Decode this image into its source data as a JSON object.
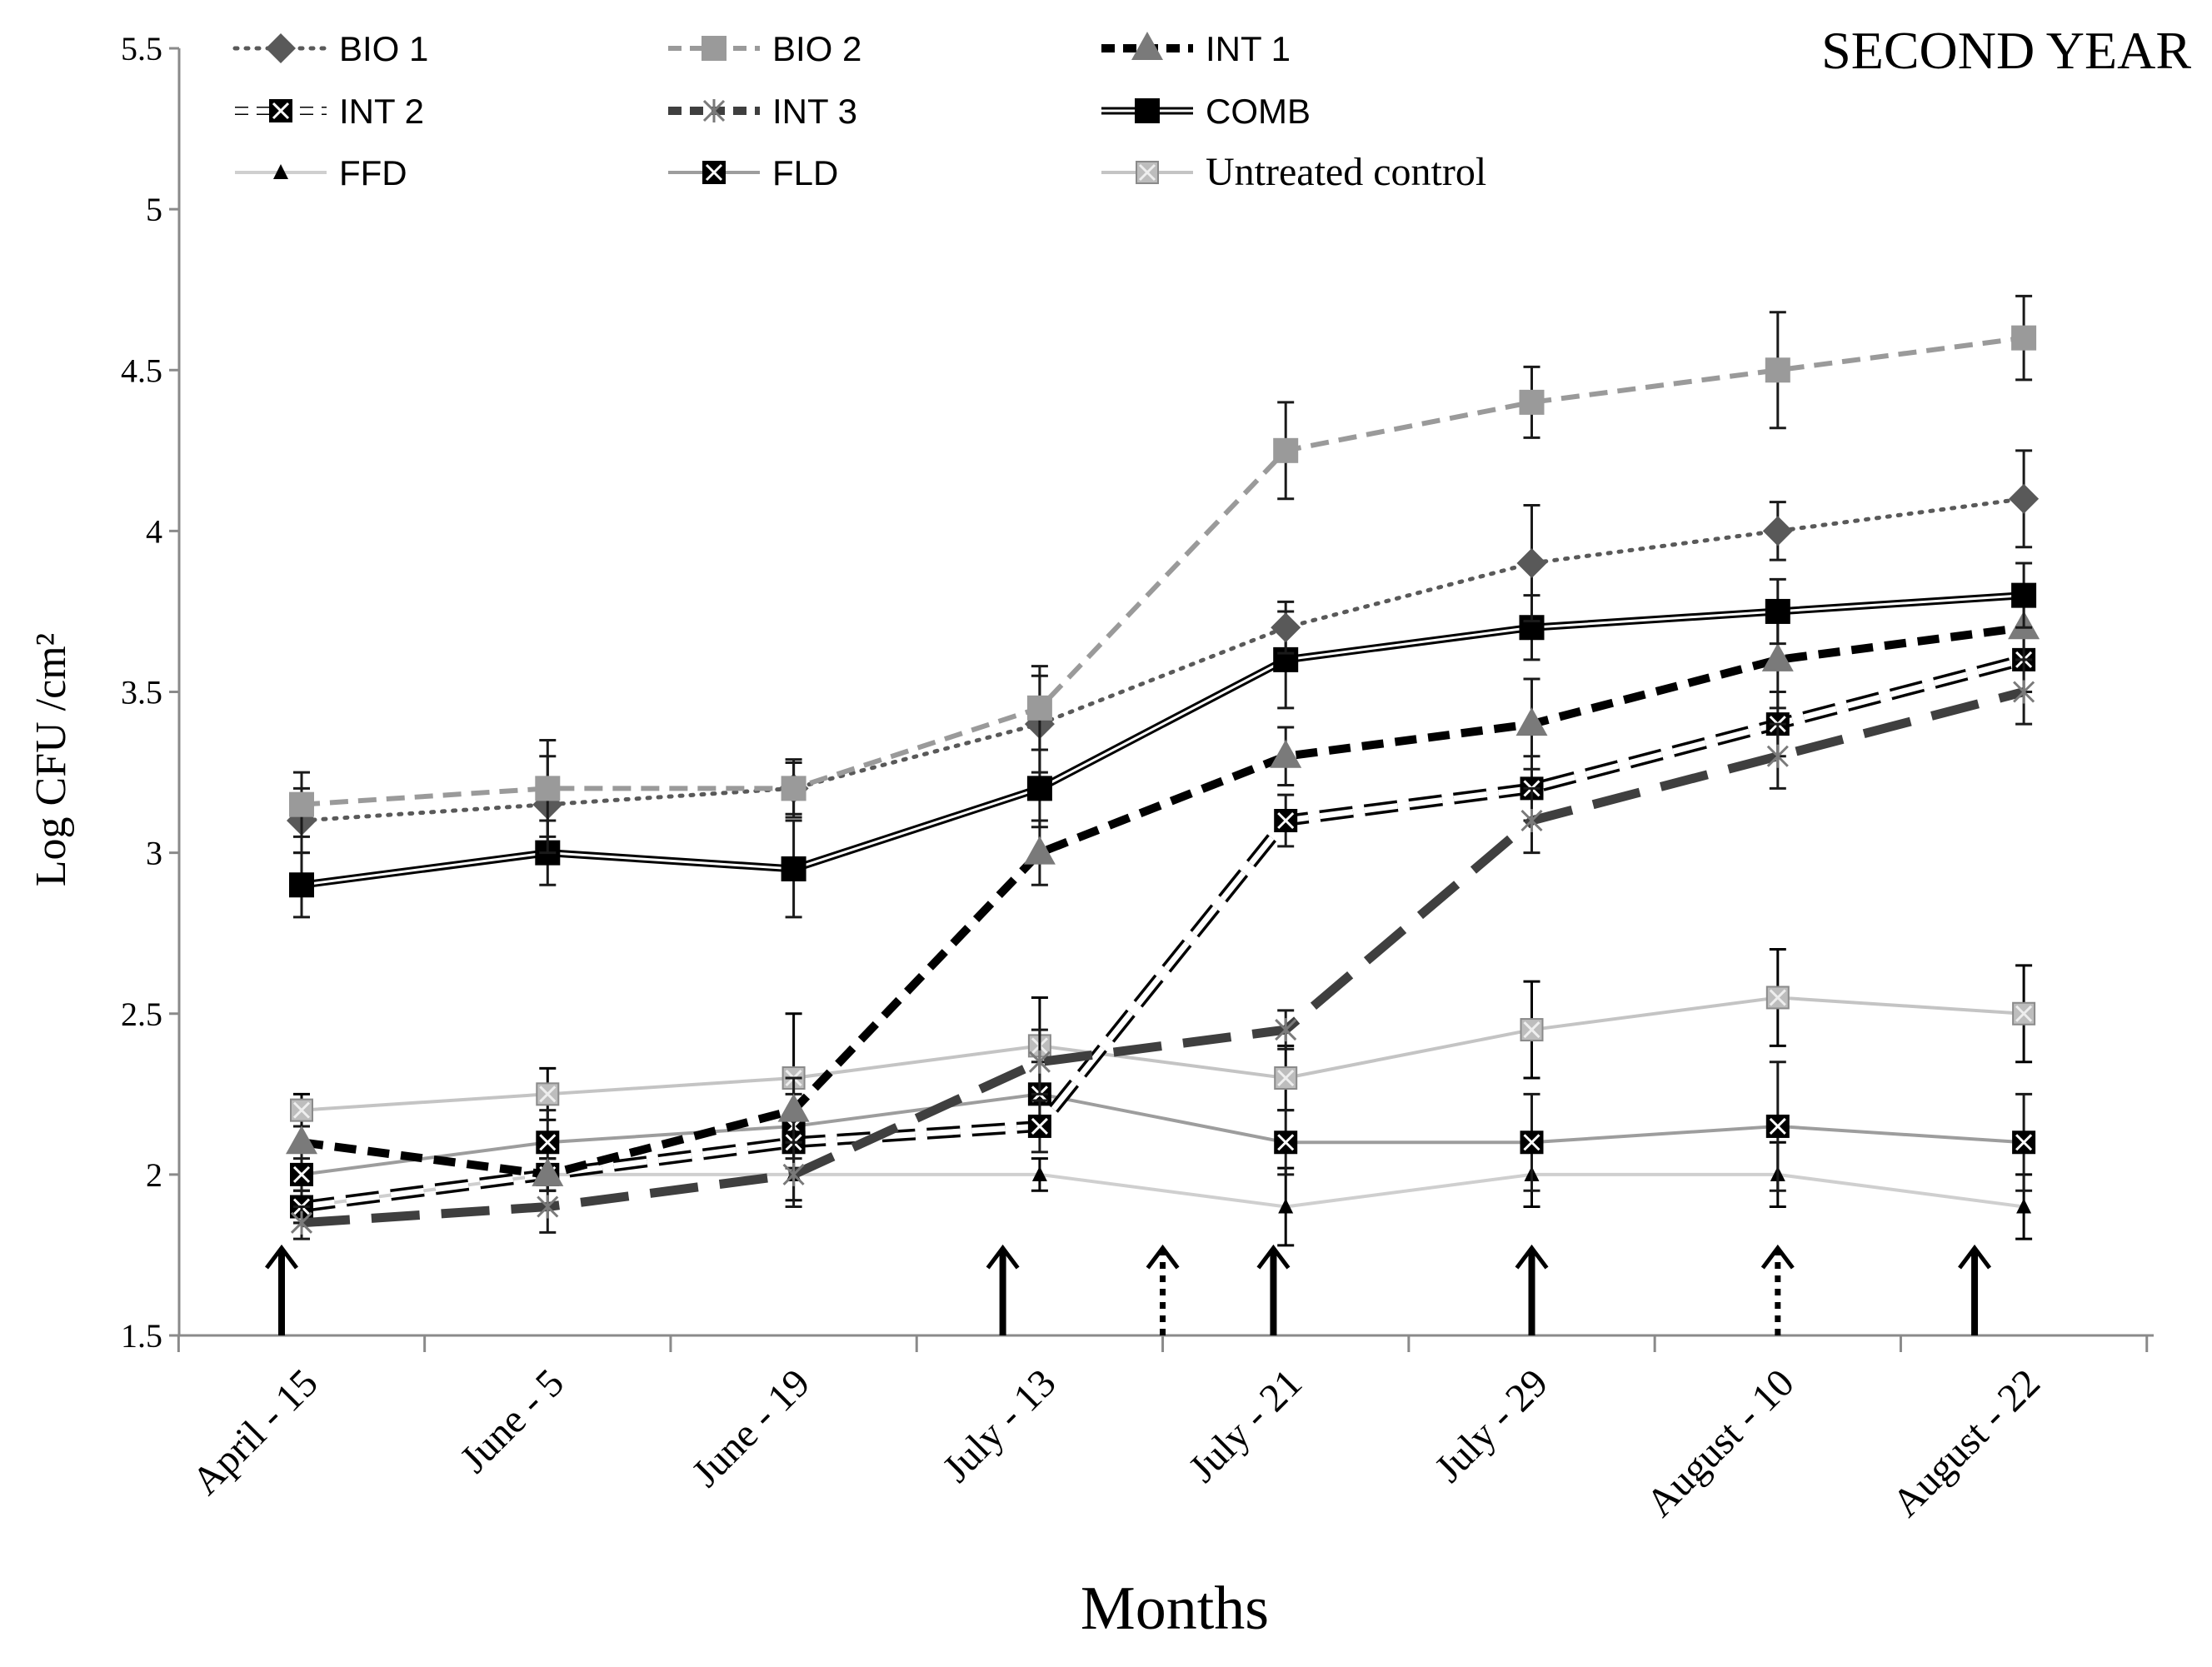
{
  "chart_data": {
    "type": "line",
    "title": "SECOND YEAR",
    "xlabel": "Months",
    "ylabel": "Log CFU /cm²",
    "ylim": [
      1.5,
      5.5
    ],
    "yticks": [
      "1.5",
      "2",
      "2.5",
      "3",
      "3.5",
      "4",
      "4.5",
      "5",
      "5.5"
    ],
    "grid": false,
    "legend_position": "top",
    "categories": [
      "April - 15",
      "June - 5",
      "June - 19",
      "July - 13",
      "July - 21",
      "July - 29",
      "August - 10",
      "August - 22"
    ],
    "series": [
      {
        "name": "BIO 1",
        "marker": "diamond",
        "color": "#595959",
        "line": "dotted",
        "values": [
          3.1,
          3.15,
          3.2,
          3.4,
          3.7,
          3.9,
          4.0,
          4.1
        ],
        "errors": [
          0.1,
          0.15,
          0.09,
          0.15,
          0.08,
          0.18,
          0.09,
          0.15
        ]
      },
      {
        "name": "BIO 2",
        "marker": "square",
        "color": "#9a9a9a",
        "line": "dashed",
        "values": [
          3.15,
          3.2,
          3.2,
          3.45,
          4.25,
          4.4,
          4.5,
          4.6
        ],
        "errors": [
          0.1,
          0.15,
          0.08,
          0.13,
          0.15,
          0.11,
          0.18,
          0.13
        ]
      },
      {
        "name": "INT 1",
        "marker": "triangle",
        "color": "#000000",
        "line": "thick-dashed",
        "values": [
          2.1,
          2.0,
          2.2,
          3.0,
          3.3,
          3.4,
          3.6,
          3.7
        ],
        "errors": [
          0.05,
          0.05,
          0.1,
          0.1,
          0.09,
          0.14,
          0.15,
          0.1
        ]
      },
      {
        "name": "INT 2",
        "marker": "xsquare",
        "color": "#000000",
        "line": "hollow-dashed",
        "values": [
          1.9,
          2.0,
          2.1,
          2.15,
          3.1,
          3.2,
          3.4,
          3.6
        ],
        "errors": [
          0.05,
          0.05,
          0.08,
          0.08,
          0.08,
          0.1,
          0.1,
          0.1
        ]
      },
      {
        "name": "INT 3",
        "marker": "star",
        "color": "#3f3f3f",
        "line": "long-dashed",
        "values": [
          1.85,
          1.9,
          2.0,
          2.35,
          2.45,
          3.1,
          3.3,
          3.5
        ],
        "errors": [
          0.05,
          0.08,
          0.1,
          0.1,
          0.06,
          0.1,
          0.1,
          0.1
        ]
      },
      {
        "name": "COMB",
        "marker": "square",
        "color": "#000000",
        "line": "double",
        "values": [
          2.9,
          3.0,
          2.95,
          3.2,
          3.6,
          3.7,
          3.75,
          3.8
        ],
        "errors": [
          0.1,
          0.1,
          0.15,
          0.12,
          0.15,
          0.1,
          0.1,
          0.1
        ]
      },
      {
        "name": "FFD",
        "marker": "small-triangle",
        "color": "#cfcfcf",
        "line": "solid",
        "values": [
          1.9,
          2.0,
          2.0,
          2.0,
          1.9,
          2.0,
          2.0,
          1.9
        ],
        "errors": [
          0.05,
          0.05,
          0.08,
          0.05,
          0.12,
          0.1,
          0.1,
          0.1
        ]
      },
      {
        "name": "FLD",
        "marker": "xsquare",
        "color": "#9d9d9d",
        "line": "solid",
        "values": [
          2.0,
          2.1,
          2.15,
          2.25,
          2.1,
          2.1,
          2.15,
          2.1
        ],
        "errors": [
          0.1,
          0.1,
          0.1,
          0.1,
          0.1,
          0.15,
          0.2,
          0.15
        ]
      },
      {
        "name": "Untreated control",
        "marker": "xsquare-light",
        "color": "#c4c4c4",
        "line": "solid",
        "values": [
          2.2,
          2.25,
          2.3,
          2.4,
          2.3,
          2.45,
          2.55,
          2.5
        ],
        "errors": [
          0.05,
          0.08,
          0.2,
          0.15,
          0.1,
          0.15,
          0.15,
          0.15
        ]
      }
    ],
    "arrows": [
      {
        "position": 0.0,
        "style": "solid"
      },
      {
        "position": 2.85,
        "style": "solid"
      },
      {
        "position": 3.5,
        "style": "dotted"
      },
      {
        "position": 3.95,
        "style": "solid"
      },
      {
        "position": 5.0,
        "style": "solid"
      },
      {
        "position": 6.0,
        "style": "dotted"
      },
      {
        "position": 6.8,
        "style": "solid"
      }
    ]
  }
}
